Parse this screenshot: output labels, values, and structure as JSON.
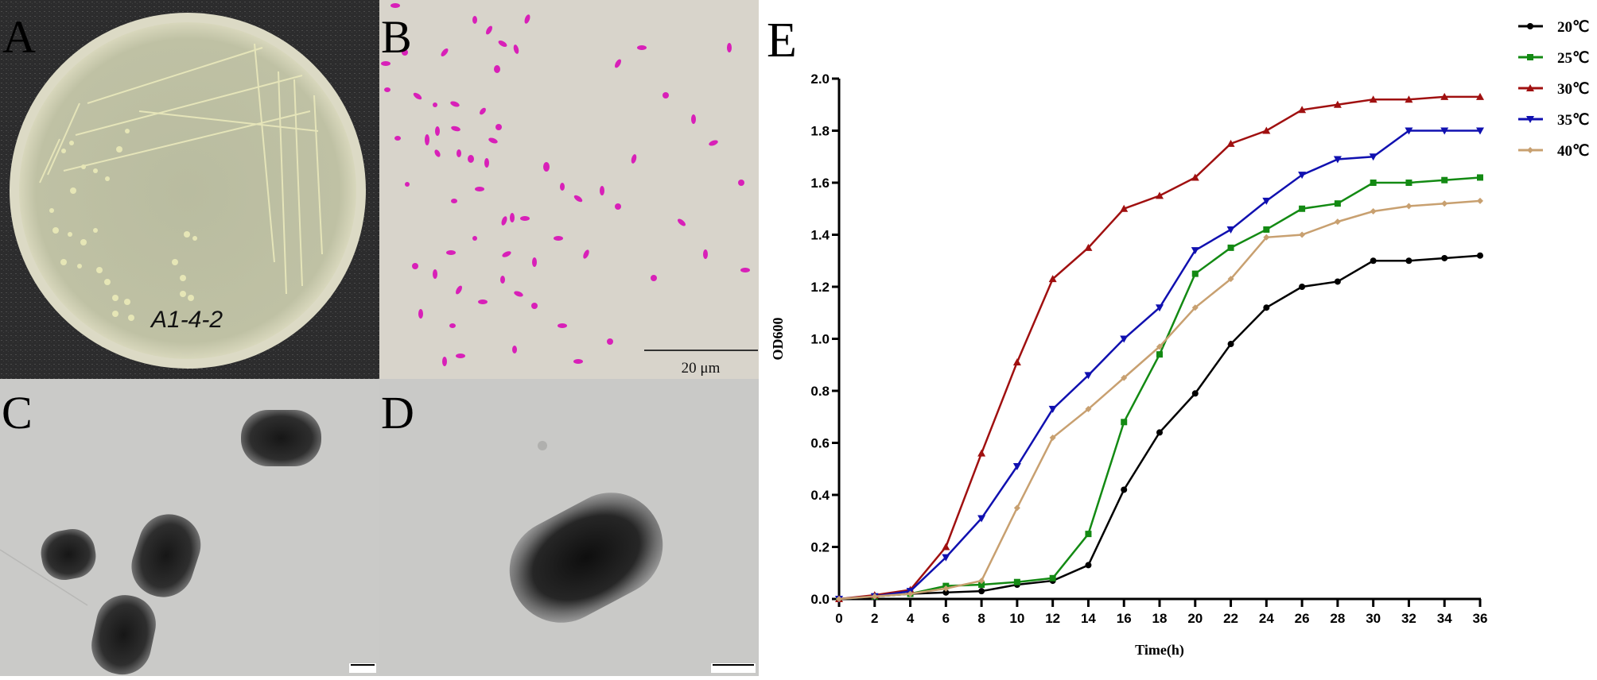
{
  "figure": {
    "panels": [
      {
        "id": "A",
        "label": "A",
        "content": "Agar plate with streaked colonies",
        "plate_label": "A1-4-2"
      },
      {
        "id": "B",
        "label": "B",
        "content": "Gram-stained rod-shaped cells (magenta)",
        "scale_bar": "20 μm"
      },
      {
        "id": "C",
        "label": "C",
        "content": "TEM image of multiple cells"
      },
      {
        "id": "D",
        "label": "D",
        "content": "TEM image of a single rod-shaped cell"
      },
      {
        "id": "E",
        "label": "E",
        "content": "Growth curves at different temperatures"
      }
    ]
  },
  "chart_data": {
    "type": "line",
    "title": "",
    "panel_label": "E",
    "xlabel": "Time(h)",
    "ylabel": "OD600",
    "x": [
      0,
      2,
      4,
      6,
      8,
      10,
      12,
      14,
      16,
      18,
      20,
      22,
      24,
      26,
      28,
      30,
      32,
      34,
      36
    ],
    "xticks": [
      "0",
      "2",
      "4",
      "6",
      "8",
      "10",
      "12",
      "14",
      "16",
      "18",
      "20",
      "22",
      "24",
      "26",
      "28",
      "30",
      "32",
      "34",
      "36"
    ],
    "yticks": [
      "0.0",
      "0.2",
      "0.4",
      "0.6",
      "0.8",
      "1.0",
      "1.2",
      "1.4",
      "1.6",
      "1.8",
      "2.0"
    ],
    "xlim": [
      0,
      36
    ],
    "ylim": [
      0,
      2.0
    ],
    "grid": false,
    "legend_position": "top-right outside",
    "series": [
      {
        "name": "20℃",
        "color": "#000000",
        "marker": "circle",
        "values": [
          0,
          0.01,
          0.02,
          0.025,
          0.03,
          0.055,
          0.07,
          0.13,
          0.42,
          0.64,
          0.79,
          0.98,
          1.12,
          1.2,
          1.22,
          1.3,
          1.3,
          1.31,
          1.32
        ]
      },
      {
        "name": "25℃",
        "color": "#138a13",
        "marker": "square",
        "values": [
          0,
          0.01,
          0.02,
          0.05,
          0.055,
          0.065,
          0.08,
          0.25,
          0.68,
          0.94,
          1.25,
          1.35,
          1.42,
          1.5,
          1.52,
          1.6,
          1.6,
          1.61,
          1.62
        ]
      },
      {
        "name": "30℃",
        "color": "#a01010",
        "marker": "triangle-up",
        "values": [
          0,
          0.015,
          0.035,
          0.2,
          0.56,
          0.91,
          1.23,
          1.35,
          1.5,
          1.55,
          1.62,
          1.75,
          1.8,
          1.88,
          1.9,
          1.92,
          1.92,
          1.93,
          1.93
        ]
      },
      {
        "name": "35℃",
        "color": "#1010b0",
        "marker": "triangle-down",
        "values": [
          0,
          0.01,
          0.03,
          0.16,
          0.31,
          0.51,
          0.73,
          0.86,
          1.0,
          1.12,
          1.34,
          1.42,
          1.53,
          1.63,
          1.69,
          1.7,
          1.8,
          1.8,
          1.8
        ]
      },
      {
        "name": "40℃",
        "color": "#c8a070",
        "marker": "diamond",
        "values": [
          0,
          0.01,
          0.02,
          0.04,
          0.07,
          0.35,
          0.62,
          0.73,
          0.85,
          0.97,
          1.12,
          1.23,
          1.39,
          1.4,
          1.45,
          1.49,
          1.51,
          1.52,
          1.53
        ]
      }
    ]
  }
}
